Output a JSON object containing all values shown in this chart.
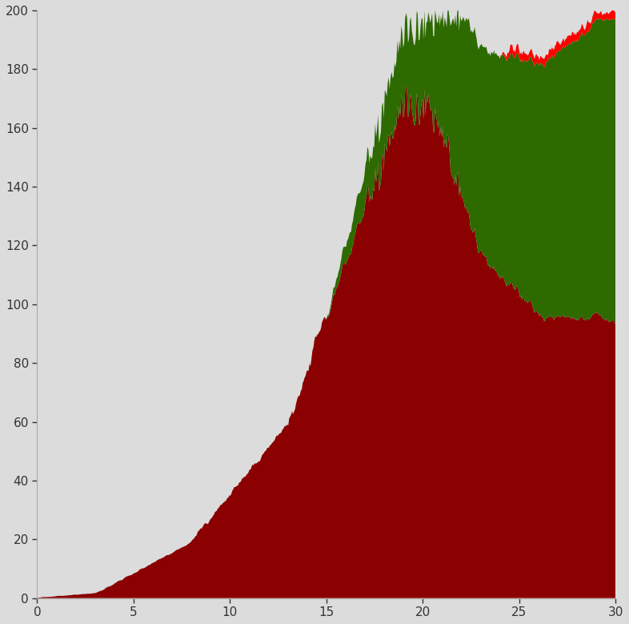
{
  "xlim": [
    0,
    30
  ],
  "ylim": [
    0,
    200
  ],
  "xticks": [
    0,
    5,
    10,
    15,
    20,
    25,
    30
  ],
  "yticks": [
    0,
    20,
    40,
    60,
    80,
    100,
    120,
    140,
    160,
    180,
    200
  ],
  "bg_color": "#dcdcdc",
  "sick_color": "#8B0000",
  "healthy_color": "#2d6a00",
  "dead_color": "#ff0000",
  "fig_bg": "#dcdcdc"
}
